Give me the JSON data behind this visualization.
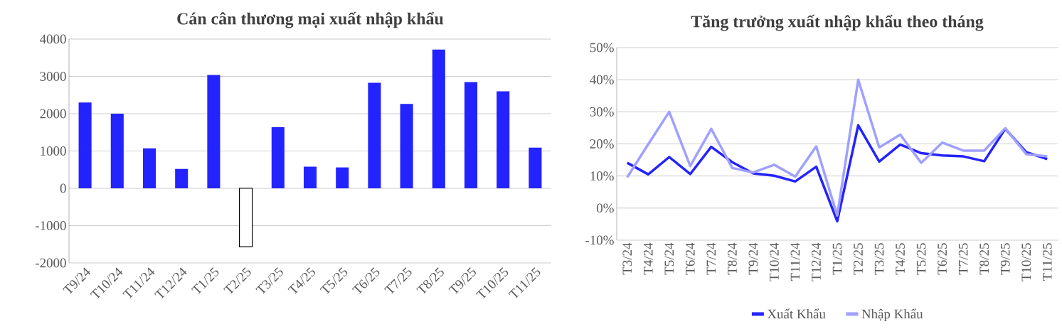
{
  "chart_data": [
    {
      "type": "bar",
      "title": "Cán cân thương mại xuất nhập khẩu",
      "categories": [
        "T9/24",
        "T10/24",
        "T11/24",
        "T12/24",
        "T1/25",
        "T2/25",
        "T3/25",
        "T4/25",
        "T5/25",
        "T6/25",
        "T7/25",
        "T8/25",
        "T9/25",
        "T10/25",
        "T11/25"
      ],
      "values": [
        2300,
        2000,
        1070,
        520,
        3040,
        -1570,
        1640,
        580,
        560,
        2830,
        2260,
        3720,
        2850,
        2600,
        1090
      ],
      "colors": [
        "#2323ff",
        "#2323ff",
        "#2323ff",
        "#2323ff",
        "#2323ff",
        "#ffffff",
        "#2323ff",
        "#2323ff",
        "#2323ff",
        "#2323ff",
        "#2323ff",
        "#2323ff",
        "#2323ff",
        "#2323ff",
        "#2323ff"
      ],
      "ylim": [
        -2000,
        4000
      ],
      "yticks": [
        -2000,
        -1000,
        0,
        1000,
        2000,
        3000,
        4000
      ],
      "grid": "y"
    },
    {
      "type": "line",
      "title": "Tăng trưởng xuất nhập khẩu theo tháng",
      "categories": [
        "T3/24",
        "T4/24",
        "T5/24",
        "T6/24",
        "T7/24",
        "T8/24",
        "T9/24",
        "T10/24",
        "T11/24",
        "T12/24",
        "T1/25",
        "T2/25",
        "T3/25",
        "T4/25",
        "T5/25",
        "T6/25",
        "T7/25",
        "T8/25",
        "T9/25",
        "T10/25",
        "T11/25"
      ],
      "series": [
        {
          "name": "Xuất Khẩu",
          "color": "#2323ff",
          "values": [
            14.1,
            10.5,
            15.9,
            10.6,
            19.1,
            14.3,
            10.8,
            10.1,
            8.3,
            12.9,
            -4.1,
            25.8,
            14.5,
            19.8,
            17.1,
            16.4,
            16.1,
            14.6,
            24.7,
            17.4,
            15.3
          ]
        },
        {
          "name": "Nhập Khẩu",
          "color": "#a0a0ff",
          "values": [
            9.6,
            19.9,
            30,
            13.1,
            24.7,
            12.5,
            11.1,
            13.5,
            9.8,
            19.2,
            -2.3,
            40,
            18.9,
            22.9,
            14.1,
            20.4,
            17.9,
            17.9,
            24.9,
            16.8,
            16.1
          ]
        }
      ],
      "ylim": [
        -10,
        50
      ],
      "yticks": [
        {
          "value": -10,
          "label": "-10%"
        },
        {
          "value": 0,
          "label": "0%"
        },
        {
          "value": 10,
          "label": "10%"
        },
        {
          "value": 20,
          "label": "20%"
        },
        {
          "value": 30,
          "label": "30%"
        },
        {
          "value": 40,
          "label": "40%"
        },
        {
          "value": 50,
          "label": "50%"
        }
      ],
      "grid": "y",
      "legend": "bottom"
    }
  ]
}
